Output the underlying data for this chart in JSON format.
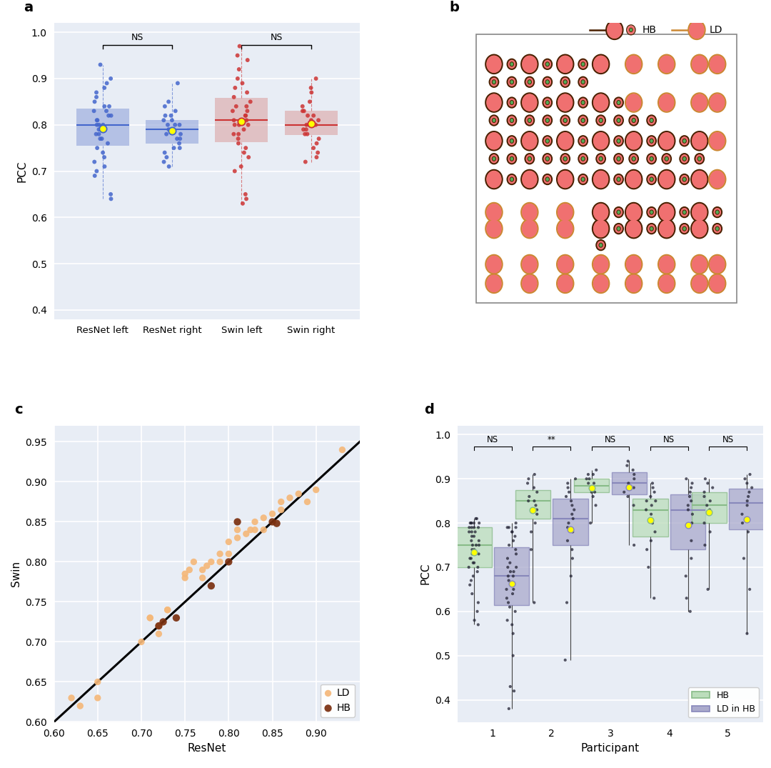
{
  "panel_a": {
    "bg_color": "#e8edf5",
    "ylim": [
      0.38,
      1.02
    ],
    "yticks": [
      0.4,
      0.5,
      0.6,
      0.7,
      0.8,
      0.9,
      1.0
    ],
    "categories": [
      "ResNet left",
      "ResNet right",
      "Swin left",
      "Swin right"
    ],
    "blue_color": "#4466cc",
    "red_color": "#cc3333",
    "blue_box": "#99aadd",
    "red_box": "#ddaaaa",
    "ylabel": "PCC",
    "resnet_left": [
      0.93,
      0.9,
      0.89,
      0.88,
      0.87,
      0.86,
      0.85,
      0.84,
      0.84,
      0.83,
      0.83,
      0.82,
      0.82,
      0.81,
      0.81,
      0.8,
      0.8,
      0.8,
      0.79,
      0.79,
      0.79,
      0.78,
      0.78,
      0.77,
      0.77,
      0.76,
      0.75,
      0.74,
      0.73,
      0.72,
      0.71,
      0.7,
      0.69,
      0.65,
      0.64
    ],
    "resnet_right": [
      0.89,
      0.85,
      0.84,
      0.83,
      0.82,
      0.82,
      0.81,
      0.81,
      0.8,
      0.8,
      0.8,
      0.79,
      0.79,
      0.79,
      0.78,
      0.78,
      0.77,
      0.77,
      0.76,
      0.75,
      0.75,
      0.74,
      0.73,
      0.72,
      0.71
    ],
    "swin_left": [
      0.97,
      0.95,
      0.94,
      0.92,
      0.9,
      0.89,
      0.88,
      0.87,
      0.86,
      0.85,
      0.84,
      0.84,
      0.83,
      0.83,
      0.82,
      0.82,
      0.81,
      0.81,
      0.8,
      0.8,
      0.8,
      0.79,
      0.78,
      0.78,
      0.77,
      0.76,
      0.75,
      0.74,
      0.73,
      0.71,
      0.7,
      0.65,
      0.64,
      0.63
    ],
    "swin_right": [
      0.9,
      0.88,
      0.87,
      0.85,
      0.84,
      0.83,
      0.83,
      0.82,
      0.82,
      0.81,
      0.81,
      0.8,
      0.8,
      0.8,
      0.79,
      0.79,
      0.78,
      0.78,
      0.77,
      0.76,
      0.75,
      0.74,
      0.73,
      0.72
    ]
  },
  "panel_b": {
    "large_color": "#f07070",
    "small_color": "#55aa55",
    "outline_dark": "#4a2000",
    "outline_ld": "#cc8833",
    "bg_color": "white",
    "rows": [
      {
        "y": 9.3,
        "circles": [
          {
            "x": 1.0,
            "size": "L",
            "type": "HB"
          },
          {
            "x": 1.65,
            "size": "S",
            "type": "HB"
          },
          {
            "x": 2.3,
            "size": "L",
            "type": "HB"
          },
          {
            "x": 2.95,
            "size": "S",
            "type": "HB"
          },
          {
            "x": 3.6,
            "size": "L",
            "type": "HB"
          },
          {
            "x": 4.25,
            "size": "S",
            "type": "HB"
          },
          {
            "x": 4.9,
            "size": "L",
            "type": "HB"
          },
          {
            "x": 6.1,
            "size": "L",
            "type": "LD"
          },
          {
            "x": 7.3,
            "size": "L",
            "type": "LD"
          },
          {
            "x": 8.5,
            "size": "L",
            "type": "LD"
          },
          {
            "x": 9.15,
            "size": "L",
            "type": "LD"
          }
        ]
      },
      {
        "y": 8.65,
        "circles": [
          {
            "x": 1.0,
            "size": "S",
            "type": "HB"
          },
          {
            "x": 1.65,
            "size": "S",
            "type": "HB"
          },
          {
            "x": 2.3,
            "size": "S",
            "type": "HB"
          },
          {
            "x": 2.95,
            "size": "S",
            "type": "HB"
          },
          {
            "x": 3.6,
            "size": "S",
            "type": "HB"
          },
          {
            "x": 4.25,
            "size": "S",
            "type": "HB"
          }
        ]
      },
      {
        "y": 7.9,
        "circles": [
          {
            "x": 1.0,
            "size": "L",
            "type": "HB"
          },
          {
            "x": 1.65,
            "size": "S",
            "type": "HB"
          },
          {
            "x": 2.3,
            "size": "L",
            "type": "HB"
          },
          {
            "x": 2.95,
            "size": "S",
            "type": "HB"
          },
          {
            "x": 3.6,
            "size": "L",
            "type": "HB"
          },
          {
            "x": 4.25,
            "size": "S",
            "type": "HB"
          },
          {
            "x": 4.9,
            "size": "L",
            "type": "HB"
          },
          {
            "x": 5.55,
            "size": "S",
            "type": "HB"
          },
          {
            "x": 6.1,
            "size": "L",
            "type": "LD"
          },
          {
            "x": 7.3,
            "size": "L",
            "type": "LD"
          },
          {
            "x": 8.5,
            "size": "L",
            "type": "LD"
          },
          {
            "x": 9.15,
            "size": "L",
            "type": "LD"
          }
        ]
      },
      {
        "y": 7.25,
        "circles": [
          {
            "x": 1.0,
            "size": "S",
            "type": "HB"
          },
          {
            "x": 1.65,
            "size": "S",
            "type": "HB"
          },
          {
            "x": 2.3,
            "size": "S",
            "type": "HB"
          },
          {
            "x": 2.95,
            "size": "S",
            "type": "HB"
          },
          {
            "x": 3.6,
            "size": "S",
            "type": "HB"
          },
          {
            "x": 4.25,
            "size": "S",
            "type": "HB"
          },
          {
            "x": 4.9,
            "size": "S",
            "type": "HB"
          },
          {
            "x": 5.55,
            "size": "S",
            "type": "HB"
          },
          {
            "x": 6.1,
            "size": "S",
            "type": "HB"
          },
          {
            "x": 6.75,
            "size": "S",
            "type": "HB"
          }
        ]
      },
      {
        "y": 6.5,
        "circles": [
          {
            "x": 1.0,
            "size": "L",
            "type": "HB"
          },
          {
            "x": 1.65,
            "size": "S",
            "type": "HB"
          },
          {
            "x": 2.3,
            "size": "L",
            "type": "HB"
          },
          {
            "x": 2.95,
            "size": "S",
            "type": "HB"
          },
          {
            "x": 3.6,
            "size": "L",
            "type": "HB"
          },
          {
            "x": 4.25,
            "size": "S",
            "type": "HB"
          },
          {
            "x": 4.9,
            "size": "L",
            "type": "HB"
          },
          {
            "x": 5.55,
            "size": "S",
            "type": "HB"
          },
          {
            "x": 6.1,
            "size": "L",
            "type": "HB"
          },
          {
            "x": 6.75,
            "size": "S",
            "type": "HB"
          },
          {
            "x": 7.3,
            "size": "L",
            "type": "HB"
          },
          {
            "x": 7.95,
            "size": "S",
            "type": "HB"
          },
          {
            "x": 8.5,
            "size": "L",
            "type": "HB"
          },
          {
            "x": 9.15,
            "size": "L",
            "type": "LD"
          }
        ]
      },
      {
        "y": 5.85,
        "circles": [
          {
            "x": 1.0,
            "size": "S",
            "type": "HB"
          },
          {
            "x": 1.65,
            "size": "S",
            "type": "HB"
          },
          {
            "x": 2.3,
            "size": "S",
            "type": "HB"
          },
          {
            "x": 2.95,
            "size": "S",
            "type": "HB"
          },
          {
            "x": 3.6,
            "size": "S",
            "type": "HB"
          },
          {
            "x": 4.25,
            "size": "S",
            "type": "HB"
          },
          {
            "x": 4.9,
            "size": "S",
            "type": "HB"
          },
          {
            "x": 5.55,
            "size": "S",
            "type": "HB"
          },
          {
            "x": 6.1,
            "size": "S",
            "type": "HB"
          },
          {
            "x": 6.75,
            "size": "S",
            "type": "HB"
          },
          {
            "x": 7.3,
            "size": "S",
            "type": "HB"
          },
          {
            "x": 7.95,
            "size": "S",
            "type": "HB"
          },
          {
            "x": 8.5,
            "size": "S",
            "type": "HB"
          }
        ]
      },
      {
        "y": 5.1,
        "circles": [
          {
            "x": 1.0,
            "size": "L",
            "type": "HB"
          },
          {
            "x": 1.65,
            "size": "S",
            "type": "HB"
          },
          {
            "x": 2.3,
            "size": "L",
            "type": "HB"
          },
          {
            "x": 2.95,
            "size": "S",
            "type": "HB"
          },
          {
            "x": 3.6,
            "size": "L",
            "type": "HB"
          },
          {
            "x": 4.25,
            "size": "S",
            "type": "HB"
          },
          {
            "x": 4.9,
            "size": "L",
            "type": "HB"
          },
          {
            "x": 5.55,
            "size": "S",
            "type": "HB"
          },
          {
            "x": 6.1,
            "size": "L",
            "type": "HB"
          },
          {
            "x": 6.75,
            "size": "S",
            "type": "HB"
          },
          {
            "x": 7.3,
            "size": "L",
            "type": "HB"
          },
          {
            "x": 7.95,
            "size": "S",
            "type": "HB"
          },
          {
            "x": 8.5,
            "size": "L",
            "type": "HB"
          },
          {
            "x": 9.15,
            "size": "L",
            "type": "LD"
          }
        ]
      },
      {
        "y": 3.9,
        "circles": [
          {
            "x": 1.0,
            "size": "L",
            "type": "LD"
          },
          {
            "x": 2.3,
            "size": "L",
            "type": "LD"
          },
          {
            "x": 3.6,
            "size": "L",
            "type": "LD"
          },
          {
            "x": 4.9,
            "size": "L",
            "type": "HB"
          },
          {
            "x": 5.55,
            "size": "S",
            "type": "HB"
          },
          {
            "x": 6.1,
            "size": "L",
            "type": "HB"
          },
          {
            "x": 6.75,
            "size": "S",
            "type": "HB"
          },
          {
            "x": 7.3,
            "size": "L",
            "type": "HB"
          },
          {
            "x": 7.95,
            "size": "S",
            "type": "HB"
          },
          {
            "x": 8.5,
            "size": "L",
            "type": "HB"
          },
          {
            "x": 9.15,
            "size": "S",
            "type": "HB"
          }
        ]
      },
      {
        "y": 3.3,
        "circles": [
          {
            "x": 1.0,
            "size": "L",
            "type": "LD"
          },
          {
            "x": 2.3,
            "size": "L",
            "type": "LD"
          },
          {
            "x": 3.6,
            "size": "L",
            "type": "LD"
          },
          {
            "x": 4.9,
            "size": "L",
            "type": "HB"
          },
          {
            "x": 5.55,
            "size": "S",
            "type": "HB"
          },
          {
            "x": 6.1,
            "size": "L",
            "type": "HB"
          },
          {
            "x": 6.75,
            "size": "S",
            "type": "HB"
          },
          {
            "x": 7.3,
            "size": "L",
            "type": "HB"
          },
          {
            "x": 7.95,
            "size": "S",
            "type": "HB"
          },
          {
            "x": 8.5,
            "size": "L",
            "type": "HB"
          },
          {
            "x": 9.15,
            "size": "S",
            "type": "HB"
          }
        ]
      },
      {
        "y": 2.7,
        "circles": [
          {
            "x": 4.9,
            "size": "S",
            "type": "HB"
          }
        ]
      },
      {
        "y": 2.0,
        "circles": [
          {
            "x": 1.0,
            "size": "L",
            "type": "LD"
          },
          {
            "x": 2.3,
            "size": "L",
            "type": "LD"
          },
          {
            "x": 3.6,
            "size": "L",
            "type": "LD"
          },
          {
            "x": 4.9,
            "size": "L",
            "type": "LD"
          },
          {
            "x": 6.1,
            "size": "L",
            "type": "LD"
          },
          {
            "x": 7.3,
            "size": "L",
            "type": "LD"
          },
          {
            "x": 8.5,
            "size": "L",
            "type": "LD"
          },
          {
            "x": 9.15,
            "size": "L",
            "type": "LD"
          }
        ]
      },
      {
        "y": 1.3,
        "circles": [
          {
            "x": 1.0,
            "size": "L",
            "type": "LD"
          },
          {
            "x": 2.3,
            "size": "L",
            "type": "LD"
          },
          {
            "x": 3.6,
            "size": "L",
            "type": "LD"
          },
          {
            "x": 4.9,
            "size": "L",
            "type": "LD"
          },
          {
            "x": 6.1,
            "size": "L",
            "type": "LD"
          },
          {
            "x": 7.3,
            "size": "L",
            "type": "LD"
          },
          {
            "x": 8.5,
            "size": "L",
            "type": "LD"
          },
          {
            "x": 9.15,
            "size": "L",
            "type": "LD"
          }
        ]
      }
    ]
  },
  "panel_c": {
    "bg_color": "#e8edf5",
    "xlim": [
      0.6,
      0.95
    ],
    "ylim": [
      0.6,
      0.97
    ],
    "xticks": [
      0.6,
      0.65,
      0.7,
      0.75,
      0.8,
      0.85,
      0.9
    ],
    "yticks": [
      0.6,
      0.65,
      0.7,
      0.75,
      0.8,
      0.85,
      0.9,
      0.95
    ],
    "xlabel": "ResNet",
    "ylabel": "Swin",
    "ld_color": "#f5b87a",
    "hb_color": "#7b3010",
    "ld_x": [
      0.62,
      0.63,
      0.65,
      0.65,
      0.7,
      0.71,
      0.71,
      0.72,
      0.72,
      0.73,
      0.73,
      0.75,
      0.75,
      0.755,
      0.76,
      0.77,
      0.77,
      0.775,
      0.78,
      0.79,
      0.79,
      0.8,
      0.8,
      0.81,
      0.81,
      0.82,
      0.825,
      0.83,
      0.83,
      0.84,
      0.84,
      0.85,
      0.86,
      0.86,
      0.87,
      0.88,
      0.89,
      0.9,
      0.93
    ],
    "ld_y": [
      0.63,
      0.62,
      0.65,
      0.63,
      0.7,
      0.73,
      0.73,
      0.71,
      0.72,
      0.74,
      0.74,
      0.78,
      0.785,
      0.79,
      0.8,
      0.78,
      0.79,
      0.795,
      0.8,
      0.8,
      0.81,
      0.81,
      0.825,
      0.83,
      0.84,
      0.835,
      0.84,
      0.84,
      0.85,
      0.84,
      0.855,
      0.86,
      0.865,
      0.875,
      0.88,
      0.885,
      0.875,
      0.89,
      0.94
    ],
    "hb_x": [
      0.72,
      0.725,
      0.74,
      0.78,
      0.8,
      0.81,
      0.85,
      0.855
    ],
    "hb_y": [
      0.72,
      0.725,
      0.73,
      0.77,
      0.8,
      0.85,
      0.85,
      0.848
    ]
  },
  "panel_d": {
    "bg_color": "#e8edf5",
    "ylim": [
      0.35,
      1.02
    ],
    "yticks": [
      0.4,
      0.5,
      0.6,
      0.7,
      0.8,
      0.9,
      1.0
    ],
    "xlabel": "Participant",
    "ylabel": "PCC",
    "participants": [
      "1",
      "2",
      "3",
      "4",
      "5"
    ],
    "hb_color": "#bbddbb",
    "ld_color": "#aaaacc",
    "hb_edge": "#88bb88",
    "ld_edge": "#8888bb",
    "hb_data": [
      [
        0.57,
        0.58,
        0.6,
        0.62,
        0.64,
        0.66,
        0.67,
        0.68,
        0.69,
        0.7,
        0.7,
        0.71,
        0.71,
        0.72,
        0.72,
        0.73,
        0.73,
        0.74,
        0.74,
        0.75,
        0.75,
        0.75,
        0.76,
        0.76,
        0.77,
        0.77,
        0.78,
        0.78,
        0.78,
        0.79,
        0.79,
        0.79,
        0.79,
        0.8,
        0.8,
        0.8,
        0.8,
        0.8,
        0.81,
        0.81
      ],
      [
        0.62,
        0.74,
        0.78,
        0.8,
        0.82,
        0.83,
        0.84,
        0.85,
        0.85,
        0.86,
        0.87,
        0.88,
        0.89,
        0.9,
        0.91
      ],
      [
        0.8,
        0.84,
        0.86,
        0.87,
        0.87,
        0.88,
        0.88,
        0.89,
        0.89,
        0.9,
        0.9,
        0.91,
        0.91,
        0.92
      ],
      [
        0.63,
        0.7,
        0.74,
        0.76,
        0.78,
        0.8,
        0.82,
        0.83,
        0.84,
        0.85,
        0.85,
        0.86,
        0.87,
        0.88,
        0.89
      ],
      [
        0.65,
        0.75,
        0.78,
        0.8,
        0.82,
        0.83,
        0.84,
        0.85,
        0.86,
        0.87,
        0.88,
        0.89,
        0.9
      ]
    ],
    "ld_data": [
      [
        0.38,
        0.42,
        0.43,
        0.5,
        0.55,
        0.57,
        0.58,
        0.6,
        0.61,
        0.62,
        0.63,
        0.64,
        0.65,
        0.65,
        0.66,
        0.67,
        0.68,
        0.68,
        0.69,
        0.69,
        0.7,
        0.7,
        0.71,
        0.72,
        0.73,
        0.74,
        0.75,
        0.76,
        0.77,
        0.78,
        0.78,
        0.79,
        0.79,
        0.79,
        0.8
      ],
      [
        0.49,
        0.62,
        0.68,
        0.72,
        0.74,
        0.76,
        0.78,
        0.79,
        0.8,
        0.81,
        0.82,
        0.83,
        0.84,
        0.85,
        0.86,
        0.87,
        0.88,
        0.89,
        0.9
      ],
      [
        0.75,
        0.84,
        0.86,
        0.87,
        0.88,
        0.89,
        0.9,
        0.91,
        0.92,
        0.93,
        0.94
      ],
      [
        0.6,
        0.63,
        0.68,
        0.72,
        0.76,
        0.8,
        0.82,
        0.83,
        0.84,
        0.85,
        0.86,
        0.87,
        0.88,
        0.89,
        0.9
      ],
      [
        0.55,
        0.65,
        0.72,
        0.78,
        0.8,
        0.82,
        0.84,
        0.85,
        0.86,
        0.87,
        0.88,
        0.89,
        0.9,
        0.91
      ]
    ],
    "sig_labels": [
      "NS",
      "**",
      "NS",
      "NS",
      "NS"
    ]
  }
}
